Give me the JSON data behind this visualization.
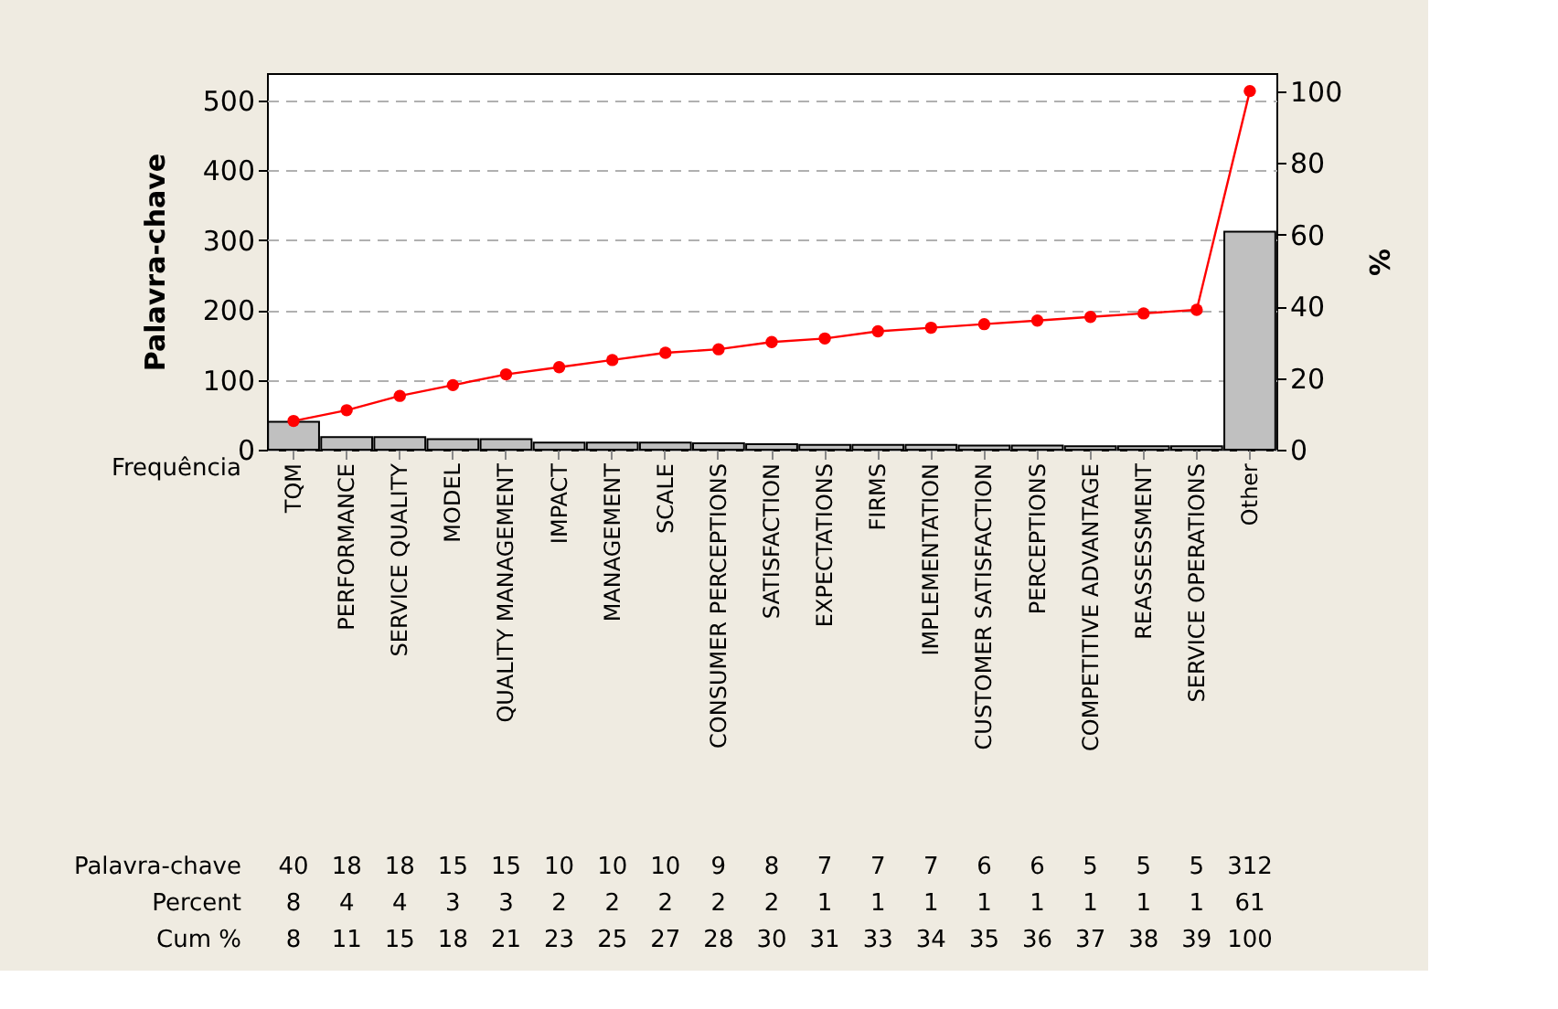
{
  "chart_data": {
    "type": "bar",
    "xlabel": "Frequência",
    "ylabel": "Palavra-chave",
    "y2label": "%",
    "categories": [
      "TQM",
      "PERFORMANCE",
      "SERVICE QUALITY",
      "MODEL",
      "QUALITY MANAGEMENT",
      "IMPACT",
      "MANAGEMENT",
      "SCALE",
      "CONSUMER PERCEPTIONS",
      "SATISFACTION",
      "EXPECTATIONS",
      "FIRMS",
      "IMPLEMENTATION",
      "CUSTOMER SATISFACTION",
      "PERCEPTIONS",
      "COMPETITIVE ADVANTAGE",
      "REASSESSMENT",
      "SERVICE OPERATIONS",
      "Other"
    ],
    "series": [
      {
        "color": "#c0c0c0",
        "values": [
          40,
          18,
          18,
          15,
          15,
          10,
          10,
          10,
          9,
          8,
          7,
          7,
          7,
          6,
          6,
          5,
          5,
          5,
          312
        ]
      },
      {
        "type": "line",
        "axis": "y2",
        "color": "#ff0000",
        "values": [
          8,
          11,
          15,
          18,
          21,
          23,
          25,
          27,
          28,
          30,
          31,
          33,
          34,
          35,
          36,
          37,
          38,
          39,
          100
        ]
      }
    ],
    "ylim": [
      0,
      539
    ],
    "yticks": [
      0,
      100,
      200,
      300,
      400,
      500
    ],
    "y2lim": [
      0,
      105
    ],
    "y2ticks": [
      0,
      20,
      40,
      60,
      80,
      100
    ],
    "grid": "y",
    "marker": "circle",
    "line_style": "solid",
    "data_labels": true,
    "annotations": [
      "Palavra-chave",
      "Percent",
      "Cum %",
      "8",
      "4",
      "4",
      "3",
      "3",
      "2",
      "2",
      "2",
      "2",
      "2",
      "1",
      "1",
      "1",
      "1",
      "1",
      "1",
      "1",
      "1",
      "61"
    ]
  }
}
